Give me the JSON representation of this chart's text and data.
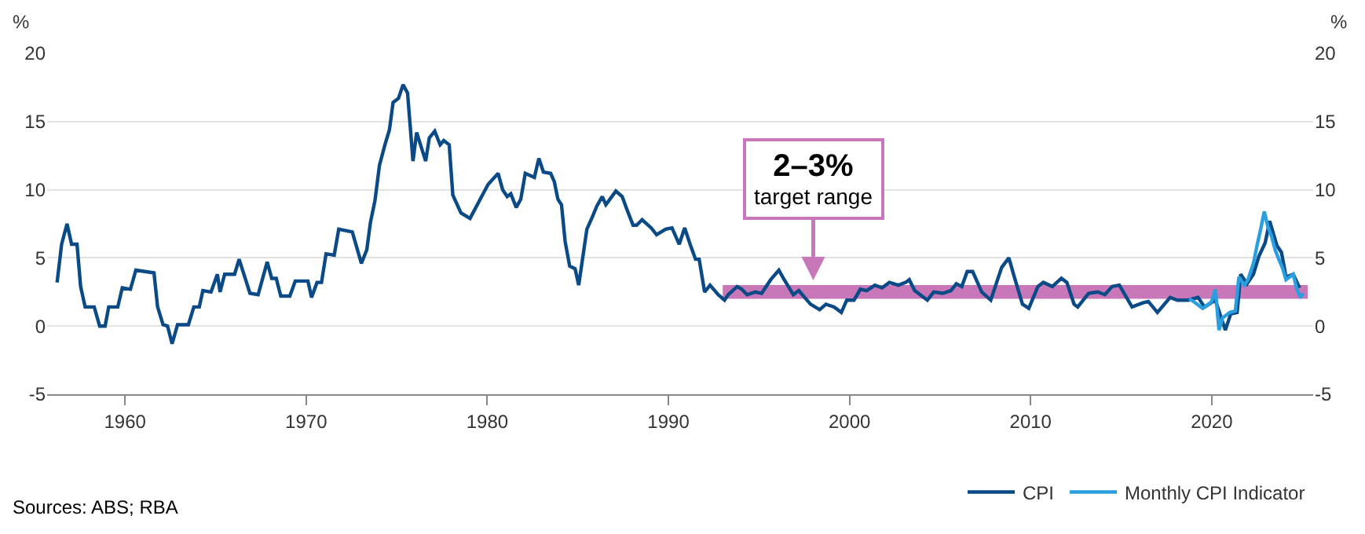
{
  "chart_data": {
    "type": "line",
    "ylabel": "%",
    "y2label": "%",
    "xlim": [
      1955.7,
      2025.6
    ],
    "xticks": [
      1960,
      1970,
      1980,
      1990,
      2000,
      2010,
      2020
    ],
    "ylim": [
      -5,
      20
    ],
    "yticks": [
      -5,
      0,
      5,
      10,
      15,
      20
    ],
    "y2lim": [
      -5,
      20
    ],
    "y2ticks": [
      -5,
      0,
      5,
      10,
      15,
      20
    ],
    "grid": "y",
    "legend": "bottom right",
    "line_style": "solid",
    "marker": "none",
    "series": [
      {
        "type": "area",
        "color": "#c878b8",
        "x": [
          1993.0,
          2025.3
        ],
        "values": [
          null,
          null
        ],
        "lower": [
          2,
          2
        ],
        "upper": [
          3,
          3
        ]
      },
      {
        "name": "CPI",
        "color": "#0a4a86",
        "x": [
          1956.25,
          1956.5,
          1956.8,
          1957.05,
          1957.35,
          1957.55,
          1957.8,
          1958.3,
          1958.6,
          1958.9,
          1959.1,
          1959.6,
          1959.85,
          1960.3,
          1960.6,
          1961.6,
          1961.8,
          1962.1,
          1962.35,
          1962.6,
          1962.9,
          1963.5,
          1963.8,
          1964.1,
          1964.3,
          1964.75,
          1965.1,
          1965.25,
          1965.5,
          1966.05,
          1966.3,
          1966.9,
          1967.35,
          1967.85,
          1968.1,
          1968.35,
          1968.6,
          1969.1,
          1969.4,
          1970.1,
          1970.3,
          1970.6,
          1970.85,
          1971.1,
          1971.55,
          1971.8,
          1972.55,
          1973.05,
          1973.35,
          1973.55,
          1973.8,
          1974.05,
          1974.35,
          1974.6,
          1974.8,
          1975.1,
          1975.35,
          1975.6,
          1975.9,
          1976.1,
          1976.6,
          1976.8,
          1977.1,
          1977.4,
          1977.6,
          1977.9,
          1978.1,
          1978.55,
          1979.05,
          1980.05,
          1980.6,
          1980.85,
          1981.1,
          1981.3,
          1981.6,
          1981.85,
          1982.1,
          1982.6,
          1982.85,
          1983.1,
          1983.5,
          1983.7,
          1983.9,
          1984.1,
          1984.3,
          1984.55,
          1984.85,
          1985.05,
          1985.5,
          1985.8,
          1986.05,
          1986.35,
          1986.55,
          1987.1,
          1987.45,
          1987.7,
          1988.05,
          1988.25,
          1988.55,
          1989.05,
          1989.35,
          1989.85,
          1990.2,
          1990.6,
          1990.9,
          1991.2,
          1991.5,
          1991.7,
          1992.0,
          1992.3,
          1992.75,
          1993.1,
          1993.3,
          1993.8,
          1994.05,
          1994.35,
          1994.8,
          1995.15,
          1995.65,
          1996.1,
          1996.35,
          1996.9,
          1997.2,
          1997.85,
          1998.35,
          1998.7,
          1999.15,
          1999.55,
          1999.85,
          2000.25,
          2000.6,
          2000.95,
          2001.4,
          2001.8,
          2002.2,
          2002.7,
          2003.1,
          2003.3,
          2003.6,
          2004.3,
          2004.65,
          2005.15,
          2005.6,
          2005.9,
          2006.2,
          2006.5,
          2006.8,
          2007.3,
          2007.8,
          2008.4,
          2008.8,
          2009.1,
          2009.55,
          2009.9,
          2010.4,
          2010.7,
          2011.2,
          2011.7,
          2012.0,
          2012.4,
          2012.6,
          2013.2,
          2013.7,
          2014.1,
          2014.5,
          2014.9,
          2015.6,
          2016.2,
          2016.5,
          2017.0,
          2017.7,
          2018.1,
          2018.7,
          2019.25,
          2019.6,
          2020.2,
          2020.75,
          2021.05,
          2021.4,
          2021.6,
          2021.95,
          2022.3,
          2022.6,
          2022.95,
          2023.2,
          2023.6,
          2023.85,
          2024.1,
          2024.5,
          2024.85
        ],
        "values": [
          3.2,
          6.0,
          7.5,
          6.0,
          6.0,
          2.9,
          1.4,
          1.4,
          0,
          0,
          1.4,
          1.4,
          2.8,
          2.7,
          4.1,
          3.9,
          1.4,
          0.1,
          0,
          -1.3,
          0.1,
          0.1,
          1.4,
          1.4,
          2.6,
          2.5,
          3.8,
          2.5,
          3.8,
          3.8,
          4.9,
          2.4,
          2.3,
          4.7,
          3.5,
          3.5,
          2.2,
          2.2,
          3.3,
          3.3,
          2.1,
          3.2,
          3.2,
          5.3,
          5.2,
          7.1,
          6.9,
          4.6,
          5.6,
          7.6,
          9.2,
          11.8,
          13.3,
          14.4,
          16.4,
          16.7,
          17.7,
          17.1,
          12.1,
          14.2,
          12.1,
          13.8,
          14.3,
          13.3,
          13.6,
          13.3,
          9.6,
          8.3,
          7.9,
          10.4,
          11.2,
          10.0,
          9.5,
          9.7,
          8.7,
          9.3,
          11.2,
          10.9,
          12.3,
          11.3,
          11.2,
          10.6,
          9.3,
          8.9,
          6.2,
          4.4,
          4.2,
          3.0,
          7.1,
          8.0,
          8.8,
          9.5,
          8.9,
          9.9,
          9.5,
          8.6,
          7.4,
          7.4,
          7.8,
          7.2,
          6.7,
          7.1,
          7.2,
          6.0,
          7.2,
          6.0,
          4.9,
          4.9,
          2.5,
          3.0,
          2.3,
          1.9,
          2.3,
          2.9,
          2.7,
          2.3,
          2.5,
          2.4,
          3.4,
          4.1,
          3.5,
          2.3,
          2.6,
          1.6,
          1.2,
          1.6,
          1.4,
          1.0,
          1.9,
          1.9,
          2.7,
          2.6,
          3.0,
          2.8,
          3.2,
          3.0,
          3.2,
          3.4,
          2.6,
          1.9,
          2.5,
          2.4,
          2.6,
          3.1,
          2.9,
          4.0,
          4.0,
          2.5,
          1.9,
          4.3,
          5.0,
          3.6,
          1.6,
          1.3,
          2.9,
          3.2,
          2.9,
          3.5,
          3.2,
          1.6,
          1.4,
          2.4,
          2.5,
          2.3,
          2.9,
          3.0,
          1.4,
          1.7,
          1.8,
          1.0,
          2.1,
          1.9,
          1.9,
          2.1,
          1.4,
          1.9,
          -0.3,
          0.9,
          1.0,
          3.8,
          3.1,
          3.8,
          5.1,
          6.1,
          7.7,
          5.9,
          5.4,
          3.6,
          3.8,
          2.8
        ]
      },
      {
        "name": "Monthly CPI Indicator",
        "color": "#2a9fdf",
        "x": [
          2018.75,
          2019.0,
          2019.5,
          2019.8,
          2020.0,
          2020.2,
          2020.4,
          2020.6,
          2021.0,
          2021.3,
          2021.5,
          2021.8,
          2022.0,
          2022.3,
          2022.5,
          2022.7,
          2022.9,
          2023.1,
          2023.3,
          2023.5,
          2023.7,
          2023.9,
          2024.1,
          2024.3,
          2024.5,
          2024.7,
          2024.9,
          2025.05
        ],
        "values": [
          2.0,
          1.8,
          1.3,
          1.6,
          1.8,
          2.7,
          -0.3,
          0.6,
          1.0,
          1.1,
          3.6,
          3.0,
          3.4,
          4.6,
          5.9,
          7.1,
          8.4,
          7.3,
          6.6,
          5.6,
          4.9,
          4.3,
          3.4,
          3.6,
          3.8,
          2.7,
          2.1,
          2.4
        ]
      }
    ],
    "annotations": [
      {
        "text": "2–3% target range",
        "x": 1998.0,
        "y": 3
      },
      "Sources: ABS; RBA"
    ]
  }
}
